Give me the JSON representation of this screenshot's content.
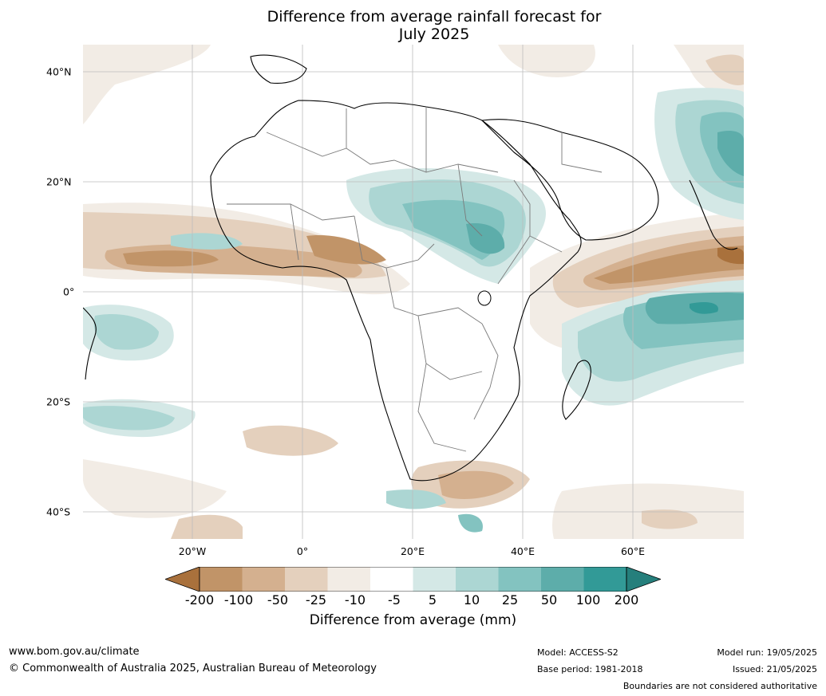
{
  "title": {
    "line1": "Difference from average rainfall forecast for",
    "line2": "July 2025"
  },
  "map": {
    "x_labels": [
      "20°W",
      "0°",
      "20°E",
      "40°E",
      "60°E"
    ],
    "y_labels": [
      "40°N",
      "20°N",
      "0°",
      "20°S",
      "40°S"
    ],
    "gridlines": true
  },
  "colorbar": {
    "ticks": [
      "-200",
      "-100",
      "-50",
      "-25",
      "-10",
      "-5",
      "5",
      "10",
      "25",
      "50",
      "100",
      "200"
    ],
    "colors": [
      "#a9713c",
      "#c19468",
      "#d4b08f",
      "#e4d0bd",
      "#f2ece5",
      "#ffffff",
      "#d4e8e6",
      "#acd6d3",
      "#83c3c0",
      "#5dadaa",
      "#329a97",
      "#257f7c"
    ],
    "title": "Difference from average (mm)"
  },
  "footer": {
    "website": "www.bom.gov.au/climate",
    "copyright": "© Commonwealth of Australia 2025, Australian Bureau of Meteorology",
    "model": "Model: ACCESS-S2",
    "base_period": "Base period: 1981-2018",
    "model_run": "Model run: 19/05/2025",
    "issued": "Issued: 21/05/2025",
    "disclaimer": "Boundaries are not considered authoritative"
  }
}
